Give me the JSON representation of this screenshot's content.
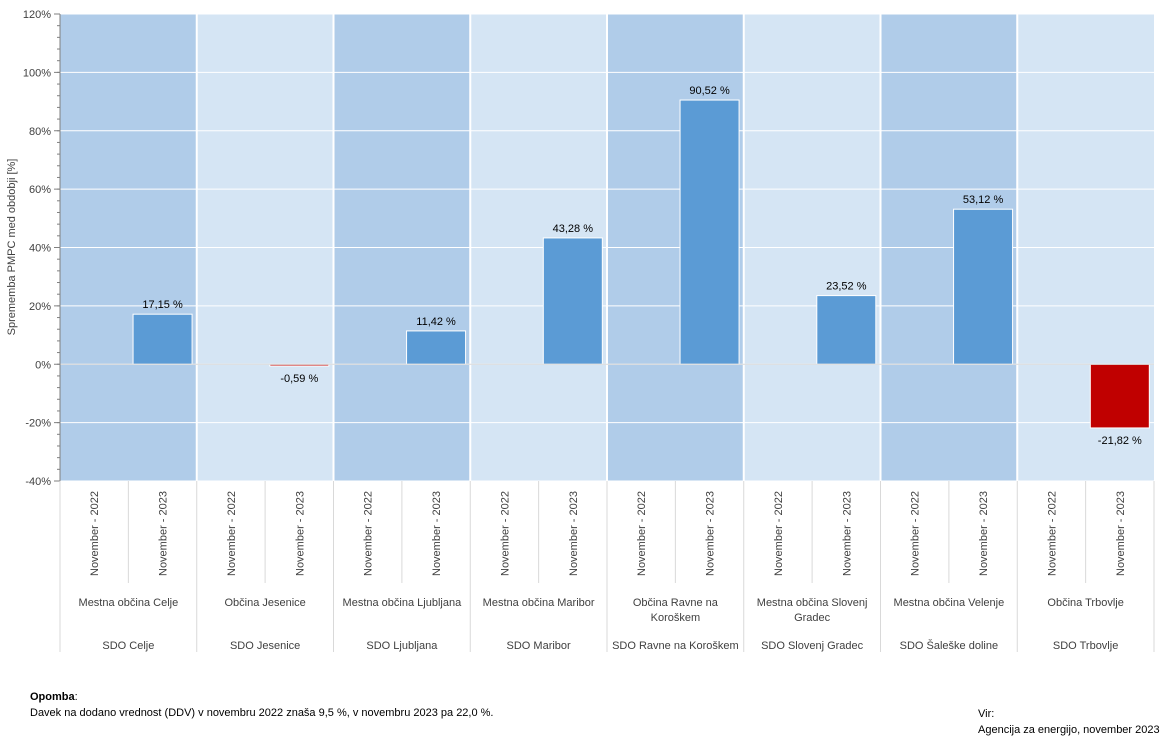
{
  "chart_data": {
    "type": "bar",
    "ylabel": "Sprememba PMPC med obdobji [%]",
    "ylim": [
      -40,
      120
    ],
    "yticks": [
      -40,
      -20,
      0,
      20,
      40,
      60,
      80,
      100,
      120
    ],
    "ytick_labels": [
      "-40%",
      "-20%",
      "0%",
      "20%",
      "40%",
      "60%",
      "80%",
      "100%",
      "120%"
    ],
    "grid": true,
    "period_labels": [
      "November - 2022",
      "November - 2023"
    ],
    "groups": [
      {
        "sdo": "SDO Celje",
        "municipality": [
          "Mestna občina Celje"
        ],
        "value": 17.15,
        "label": "17,15 %"
      },
      {
        "sdo": "SDO Jesenice",
        "municipality": [
          "Občina Jesenice"
        ],
        "value": -0.59,
        "label": "-0,59 %"
      },
      {
        "sdo": "SDO Ljubljana",
        "municipality": [
          "Mestna občina Ljubljana"
        ],
        "value": 11.42,
        "label": "11,42 %"
      },
      {
        "sdo": "SDO Maribor",
        "municipality": [
          "Mestna občina Maribor"
        ],
        "value": 43.28,
        "label": "43,28 %"
      },
      {
        "sdo": "SDO Ravne na Koroškem",
        "municipality": [
          "Občina Ravne na",
          "Koroškem"
        ],
        "value": 90.52,
        "label": "90,52 %"
      },
      {
        "sdo": "SDO Slovenj Gradec",
        "municipality": [
          "Mestna občina Slovenj",
          "Gradec"
        ],
        "value": 23.52,
        "label": "23,52 %"
      },
      {
        "sdo": "SDO Šaleške doline",
        "municipality": [
          "Mestna občina Velenje"
        ],
        "value": 53.12,
        "label": "53,12 %"
      },
      {
        "sdo": "SDO Trbovlje",
        "municipality": [
          "Občina Trbovlje"
        ],
        "value": -21.82,
        "label": "-21,82 %"
      }
    ],
    "colors": {
      "band_dark": "#b0cce9",
      "band_light": "#d5e5f4",
      "positive": "#5b9bd5",
      "negative": "#c00000",
      "grid": "#ffffff"
    }
  },
  "note": {
    "title": "Opomba",
    "text": "Davek na dodano vrednost (DDV) v novembru 2022 znaša 9,5 %, v novembru 2023 pa 22,0 %."
  },
  "source": {
    "label": "Vir:",
    "text": "Agencija za energijo, november 2023"
  }
}
